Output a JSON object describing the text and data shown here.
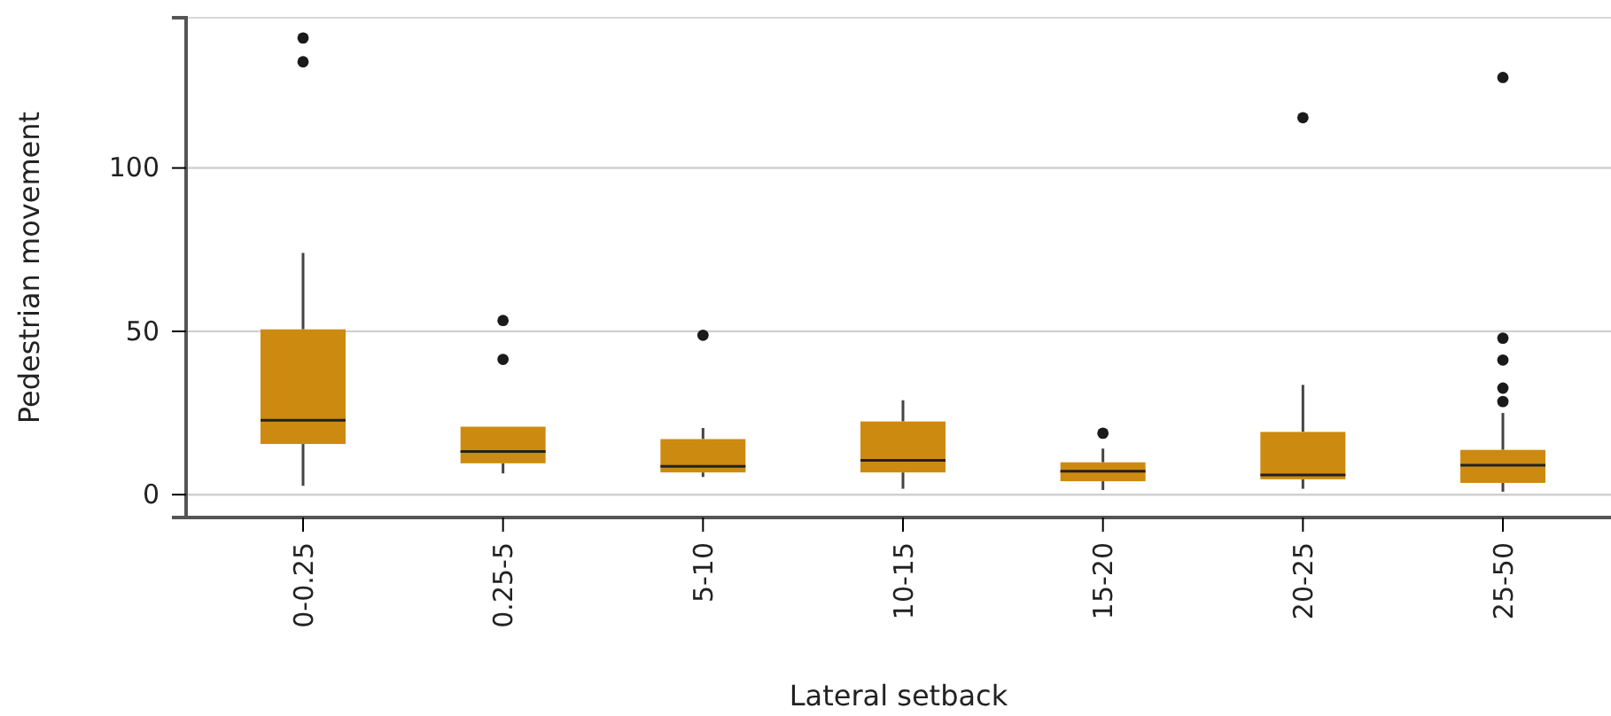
{
  "chart_data": {
    "type": "box",
    "xlabel": "Lateral setback",
    "ylabel": "Pedestrian movement",
    "categories": [
      "0-0.25",
      "0.25-5",
      "5-10",
      "10-15",
      "15-20",
      "20-25",
      "25-50"
    ],
    "color": "#cd8a10",
    "ylim": [
      -7,
      146
    ],
    "yticks": [
      0,
      50,
      100
    ],
    "grid": "y",
    "boxes": [
      {
        "low": 2.7,
        "q1": 15.5,
        "median": 22.8,
        "q3": 50.6,
        "high": 74,
        "outliers": [
          139.8,
          132.5
        ]
      },
      {
        "low": 6.5,
        "q1": 9.6,
        "median": 13.2,
        "q3": 20.8,
        "high": 20.8,
        "outliers": [
          53.3,
          41.4
        ]
      },
      {
        "low": 5.4,
        "q1": 6.8,
        "median": 8.7,
        "q3": 17,
        "high": 20.4,
        "outliers": [
          48.8
        ]
      },
      {
        "low": 1.8,
        "q1": 6.8,
        "median": 10.5,
        "q3": 22.4,
        "high": 28.9
      },
      {
        "low": 1.4,
        "q1": 4.1,
        "median": 7.2,
        "q3": 9.9,
        "high": 14.1,
        "outliers": [
          18.8
        ]
      },
      {
        "low": 1.8,
        "q1": 4.7,
        "median": 6,
        "q3": 19.2,
        "high": 33.6,
        "outliers": [
          115.4
        ]
      },
      {
        "low": 0.9,
        "q1": 3.6,
        "median": 9,
        "q3": 13.7,
        "high": 25,
        "outliers": [
          127.7,
          47.9,
          41.2,
          32.6,
          28.5
        ]
      }
    ]
  }
}
